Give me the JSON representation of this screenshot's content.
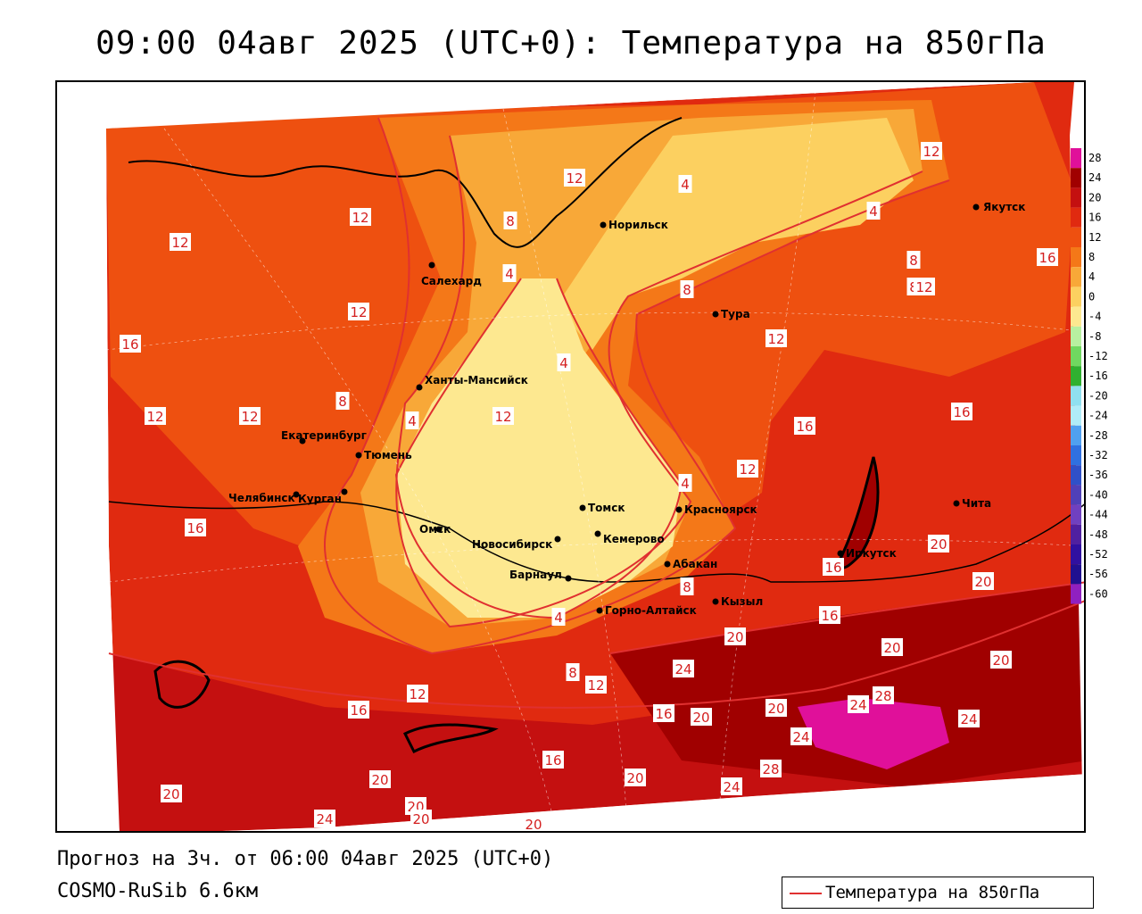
{
  "title": "09:00 04авг 2025 (UTC+0): Температура на 850гПа",
  "forecast_text": "Прогноз на 3ч. от 06:00 04авг 2025 (UTC+0)",
  "model_text": "COSMO-RuSib 6.6км",
  "legend": {
    "series_label": "Температура на 850гПа",
    "line_color": "#e03030"
  },
  "color_scale": {
    "labels": [
      "28",
      "24",
      "20",
      "16",
      "12",
      "8",
      "4",
      "0",
      "-4",
      "-8",
      "-12",
      "-16",
      "-20",
      "-24",
      "-28",
      "-32",
      "-36",
      "-40",
      "-44",
      "-48",
      "-52",
      "-56",
      "-60"
    ],
    "colors": [
      "#e0109a",
      "#a00000",
      "#c41010",
      "#e02a10",
      "#ee5010",
      "#f47818",
      "#f8a838",
      "#fcd060",
      "#fde890",
      "#b8f0a0",
      "#70d860",
      "#30b030",
      "#90e0f0",
      "#b0ecf8",
      "#50a0f0",
      "#3070e0",
      "#3050c8",
      "#5040b8",
      "#7040c0",
      "#5020a0",
      "#3010a0",
      "#201090",
      "#9020c0"
    ]
  },
  "cities": [
    {
      "name": "Норильск"
    },
    {
      "name": "Салехард"
    },
    {
      "name": "Тура"
    },
    {
      "name": "Якутск"
    },
    {
      "name": "Ханты-Мансийск"
    },
    {
      "name": "Екатеринбург"
    },
    {
      "name": "Тюмень"
    },
    {
      "name": "Челябинск"
    },
    {
      "name": "Курган"
    },
    {
      "name": "Омск"
    },
    {
      "name": "Новосибирск"
    },
    {
      "name": "Томск"
    },
    {
      "name": "Кемерово"
    },
    {
      "name": "Красноярск"
    },
    {
      "name": "Барнаул"
    },
    {
      "name": "Абакан"
    },
    {
      "name": "Горно-Алтайск"
    },
    {
      "name": "Кызыл"
    },
    {
      "name": "Иркутск"
    },
    {
      "name": "Чита"
    }
  ],
  "isotherm_labels": [
    "12",
    "12",
    "12",
    "12",
    "16",
    "12",
    "8",
    "12",
    "16",
    "12",
    "8",
    "4",
    "4",
    "4",
    "4",
    "4",
    "8",
    "4",
    "8",
    "12",
    "16",
    "12",
    "16",
    "20",
    "20",
    "16",
    "20",
    "24",
    "28",
    "24",
    "24",
    "20",
    "20",
    "12",
    "8",
    "16",
    "20",
    "16",
    "24",
    "28",
    "20",
    "24",
    "20",
    "20",
    "20",
    "24",
    "20",
    "20",
    "16",
    "12",
    "20",
    "8",
    "4",
    "16",
    "16",
    "12",
    "12",
    "8"
  ]
}
